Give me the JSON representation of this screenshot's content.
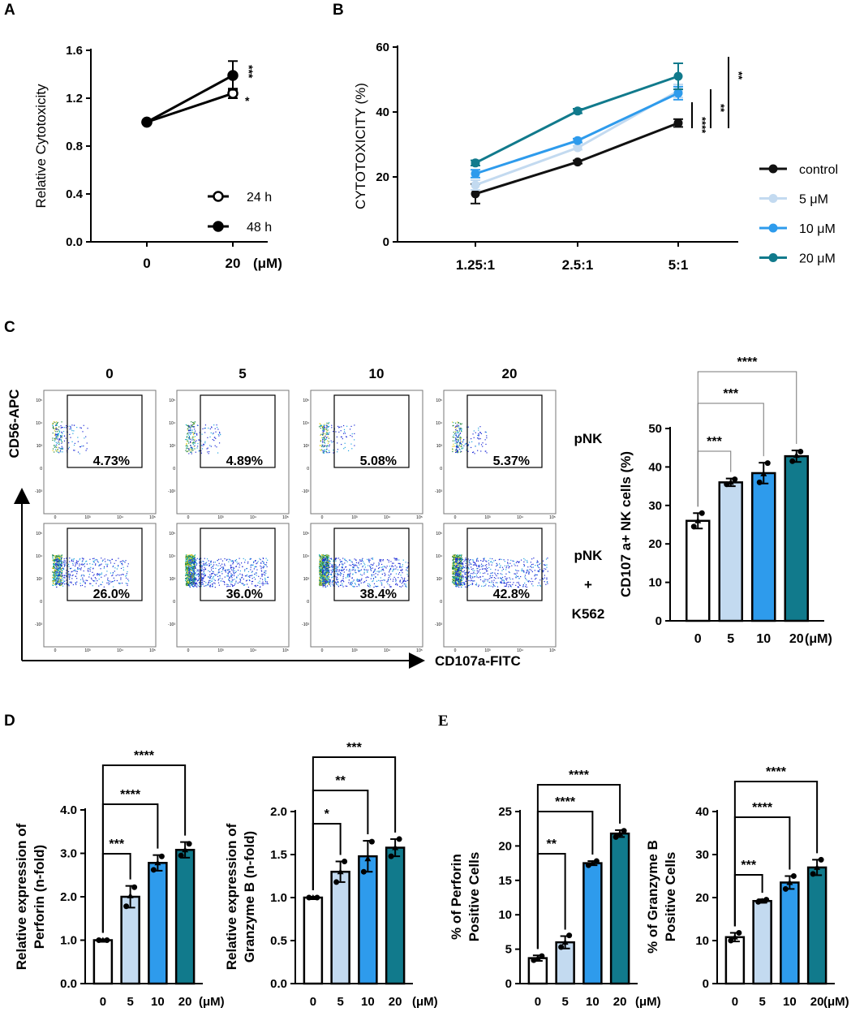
{
  "panels": {
    "A": "A",
    "B": "B",
    "C": "C",
    "D": "D",
    "E": "E"
  },
  "chart_data": [
    {
      "id": "A",
      "type": "line",
      "ylabel": "Relative Cytotoxicity",
      "xlabel": "",
      "unit": "(μM)",
      "categories": [
        "0",
        "20"
      ],
      "ylim": [
        0,
        1.6
      ],
      "yticks": [
        "0.0",
        "0.4",
        "0.8",
        "1.2",
        "1.6"
      ],
      "series": [
        {
          "name": "24 h",
          "marker": "open",
          "values": [
            1.0,
            1.24
          ],
          "err": [
            0,
            0.04
          ],
          "sig": "*"
        },
        {
          "name": "48 h",
          "marker": "filled",
          "values": [
            1.0,
            1.39
          ],
          "err": [
            0,
            0.12
          ],
          "sig": "***"
        }
      ]
    },
    {
      "id": "B",
      "type": "line",
      "ylabel": "CYTOTOXICITY (%)",
      "categories": [
        "1.25:1",
        "2.5:1",
        "5:1"
      ],
      "ylim": [
        0,
        60
      ],
      "yticks": [
        "0",
        "20",
        "40",
        "60"
      ],
      "series": [
        {
          "name": "control",
          "color": "#111111",
          "values": [
            14.8,
            24.6,
            36.6
          ],
          "err": [
            3.0,
            0.5,
            1.2
          ]
        },
        {
          "name": "5 μM",
          "color": "#c3daf0",
          "values": [
            17.5,
            29.0,
            46.5
          ],
          "err": [
            1.5,
            0.6,
            2.0
          ]
        },
        {
          "name": "10 μM",
          "color": "#2e9bec",
          "values": [
            21.0,
            31.2,
            45.8
          ],
          "err": [
            1.2,
            0.6,
            2.0
          ]
        },
        {
          "name": "20 μM",
          "color": "#117a8c",
          "values": [
            24.3,
            40.3,
            51.0
          ],
          "err": [
            0.8,
            0.7,
            4.0
          ]
        }
      ],
      "sig": [
        "****",
        "**",
        "**"
      ]
    },
    {
      "id": "C",
      "type": "bar",
      "ylabel": "CD107 a+ NK cells (%)",
      "unit": "(μM)",
      "categories": [
        "0",
        "5",
        "10",
        "20"
      ],
      "values": [
        26.0,
        36.0,
        38.4,
        42.8
      ],
      "err": [
        2.0,
        1.0,
        2.7,
        1.5
      ],
      "points": [
        [
          24.5,
          26.0,
          28.0
        ],
        [
          35.5,
          36.0,
          36.8
        ],
        [
          36.0,
          38.2,
          41.0
        ],
        [
          41.5,
          43.0,
          44.0
        ]
      ],
      "ylim": [
        0,
        50
      ],
      "yticks": [
        "0",
        "10",
        "20",
        "30",
        "40",
        "50"
      ],
      "brackets": [
        {
          "to": 1,
          "label": "***"
        },
        {
          "to": 2,
          "label": "***"
        },
        {
          "to": 3,
          "label": "****"
        }
      ]
    },
    {
      "id": "D1",
      "type": "bar",
      "ylabel": "Relative expression of Perforin (n-fold)",
      "unit": "(μM)",
      "categories": [
        "0",
        "5",
        "10",
        "20"
      ],
      "values": [
        1.0,
        2.0,
        2.78,
        3.08
      ],
      "err": [
        0.02,
        0.25,
        0.18,
        0.18
      ],
      "points": [
        [
          1.0,
          1.0,
          1.0
        ],
        [
          1.78,
          2.02,
          2.22
        ],
        [
          2.62,
          2.78,
          2.93
        ],
        [
          2.95,
          3.08,
          3.22
        ]
      ],
      "ylim": [
        0,
        4
      ],
      "yticks": [
        "0.0",
        "1.0",
        "2.0",
        "3.0",
        "4.0"
      ],
      "brackets": [
        {
          "to": 1,
          "label": "***"
        },
        {
          "to": 2,
          "label": "****"
        },
        {
          "to": 3,
          "label": "****"
        }
      ]
    },
    {
      "id": "D2",
      "type": "bar",
      "ylabel": "Relative expression of Granzyme B (n-fold)",
      "unit": "(μM)",
      "categories": [
        "0",
        "5",
        "10",
        "20"
      ],
      "values": [
        1.0,
        1.3,
        1.48,
        1.58
      ],
      "err": [
        0.01,
        0.12,
        0.18,
        0.1
      ],
      "points": [
        [
          1.0,
          1.0,
          1.0
        ],
        [
          1.18,
          1.3,
          1.42
        ],
        [
          1.3,
          1.45,
          1.65
        ],
        [
          1.48,
          1.58,
          1.68
        ]
      ],
      "ylim": [
        0,
        2
      ],
      "yticks": [
        "0.0",
        "0.5",
        "1.0",
        "1.5",
        "2.0"
      ],
      "brackets": [
        {
          "to": 1,
          "label": "*"
        },
        {
          "to": 2,
          "label": "**"
        },
        {
          "to": 3,
          "label": "***"
        }
      ]
    },
    {
      "id": "E1",
      "type": "bar",
      "ylabel": "% of Perforin Positive Cells",
      "unit": "(μM)",
      "categories": [
        "0",
        "5",
        "10",
        "20"
      ],
      "values": [
        3.7,
        6.0,
        17.5,
        21.8
      ],
      "err": [
        0.4,
        0.9,
        0.3,
        0.5
      ],
      "points": [
        [
          3.4,
          3.7,
          4.0
        ],
        [
          5.3,
          6.0,
          7.0
        ],
        [
          17.2,
          17.5,
          17.8
        ],
        [
          21.3,
          21.8,
          22.2
        ]
      ],
      "ylim": [
        0,
        25
      ],
      "yticks": [
        "0",
        "5",
        "10",
        "15",
        "20",
        "25"
      ],
      "brackets": [
        {
          "to": 1,
          "label": "**"
        },
        {
          "to": 2,
          "label": "****"
        },
        {
          "to": 3,
          "label": "****"
        }
      ]
    },
    {
      "id": "E2",
      "type": "bar",
      "ylabel": "% of Granzyme B Positive Cells",
      "unit": "(μM)",
      "categories": [
        "0",
        "5",
        "10",
        "20"
      ],
      "values": [
        10.8,
        19.2,
        23.5,
        27.0
      ],
      "err": [
        1.0,
        0.4,
        1.5,
        1.8
      ],
      "points": [
        [
          10.0,
          10.8,
          11.8
        ],
        [
          19.0,
          19.2,
          19.5
        ],
        [
          22.0,
          23.5,
          25.0
        ],
        [
          25.5,
          27.0,
          28.8
        ]
      ],
      "ylim": [
        0,
        40
      ],
      "yticks": [
        "0",
        "10",
        "20",
        "30",
        "40"
      ],
      "brackets": [
        {
          "to": 1,
          "label": "***"
        },
        {
          "to": 2,
          "label": "****"
        },
        {
          "to": 3,
          "label": "****"
        }
      ]
    }
  ],
  "bar_colors": [
    "#ffffff",
    "#c3daf0",
    "#2e9bec",
    "#117a8c"
  ],
  "flow": {
    "columns": [
      "0",
      "5",
      "10",
      "20"
    ],
    "rows": [
      {
        "label": [
          "pNK"
        ],
        "pcts": [
          "4.73%",
          "4.89%",
          "5.08%",
          "5.37%"
        ],
        "counts": [
          180,
          200,
          180,
          200
        ]
      },
      {
        "label": [
          "pNK",
          "+",
          "K562"
        ],
        "pcts": [
          "26.0%",
          "36.0%",
          "38.4%",
          "42.8%"
        ],
        "counts": [
          700,
          1100,
          1100,
          1050
        ]
      }
    ],
    "yaxis": "CD56-APC",
    "xaxis": "CD107a-FITC",
    "ticks_y": [
      "10⁵",
      "10⁴",
      "10³",
      "0",
      "-10³"
    ],
    "ticks_x": [
      "0",
      "10³",
      "10⁴",
      "10⁵"
    ]
  }
}
